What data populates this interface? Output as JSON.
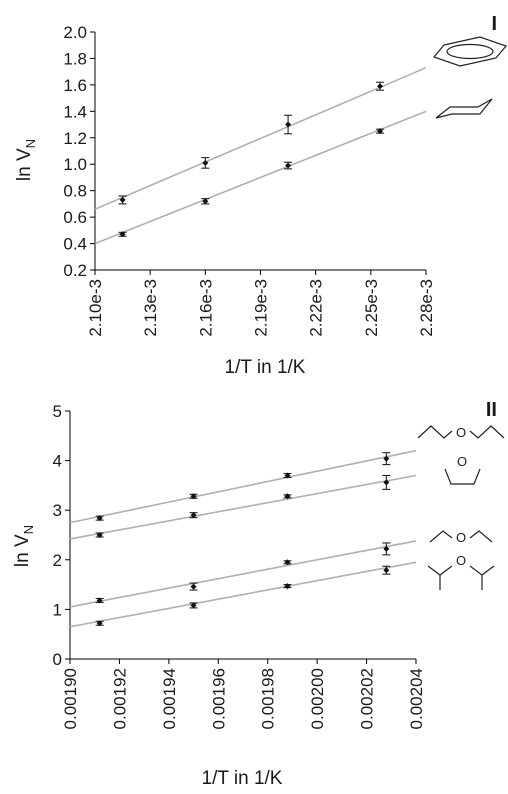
{
  "chart_data": [
    {
      "type": "scatter",
      "panel_label": "I",
      "xlabel": "1/T in 1/K",
      "ylabel_main": "ln V",
      "ylabel_sub": "N",
      "xlim": [
        0.0021,
        0.00228
      ],
      "ylim": [
        0.2,
        2.0
      ],
      "xticks": [
        0.0021,
        0.00213,
        0.00216,
        0.00219,
        0.00222,
        0.00225,
        0.00228
      ],
      "xtick_labels": [
        "2.10e-3",
        "2.13e-3",
        "2.16e-3",
        "2.19e-3",
        "2.22e-3",
        "2.25e-3",
        "2.28e-3"
      ],
      "yticks": [
        0.2,
        0.4,
        0.6,
        0.8,
        1.0,
        1.2,
        1.4,
        1.6,
        1.8,
        2.0
      ],
      "ytick_labels": [
        "0.2",
        "0.4",
        "0.6",
        "0.8",
        "1.0",
        "1.2",
        "1.4",
        "1.6",
        "1.8",
        "2.0"
      ],
      "series": [
        {
          "molecule": "benzene",
          "x": [
            0.002115,
            0.00216,
            0.002205,
            0.002255
          ],
          "y": [
            0.73,
            1.01,
            1.3,
            1.59
          ],
          "err": [
            0.03,
            0.04,
            0.07,
            0.03
          ],
          "fit": [
            [
              0.0021,
              0.66
            ],
            [
              0.00228,
              1.73
            ]
          ]
        },
        {
          "molecule": "cyclohexane",
          "x": [
            0.002115,
            0.00216,
            0.002205,
            0.002255
          ],
          "y": [
            0.47,
            0.72,
            0.99,
            1.25
          ],
          "err": [
            0.015,
            0.02,
            0.025,
            0.015
          ],
          "fit": [
            [
              0.0021,
              0.4
            ],
            [
              0.00228,
              1.4
            ]
          ]
        }
      ]
    },
    {
      "type": "scatter",
      "panel_label": "II",
      "xlabel": "1/T in 1/K",
      "ylabel_main": "ln V",
      "ylabel_sub": "N",
      "xlim": [
        0.0019,
        0.00204
      ],
      "ylim": [
        0,
        5
      ],
      "xticks": [
        0.0019,
        0.00192,
        0.00194,
        0.00196,
        0.00198,
        0.002,
        0.00202,
        0.00204
      ],
      "xtick_labels": [
        "0.00190",
        "0.00192",
        "0.00194",
        "0.00196",
        "0.00198",
        "0.00200",
        "0.00202",
        "0.00204"
      ],
      "yticks": [
        0,
        1,
        2,
        3,
        4,
        5
      ],
      "ytick_labels": [
        "0",
        "1",
        "2",
        "3",
        "4",
        "5"
      ],
      "series": [
        {
          "molecule": "dipropyl ether",
          "x": [
            0.001912,
            0.00195,
            0.001988,
            0.002028
          ],
          "y": [
            2.84,
            3.28,
            3.7,
            4.04
          ],
          "err": [
            0.04,
            0.04,
            0.04,
            0.12
          ],
          "fit": [
            [
              0.0019,
              2.75
            ],
            [
              0.00204,
              4.2
            ]
          ]
        },
        {
          "molecule": "tetrahydrofuran",
          "x": [
            0.001912,
            0.00195,
            0.001988,
            0.002028
          ],
          "y": [
            2.5,
            2.9,
            3.28,
            3.56
          ],
          "err": [
            0.04,
            0.05,
            0.03,
            0.14
          ],
          "fit": [
            [
              0.0019,
              2.42
            ],
            [
              0.00204,
              3.7
            ]
          ]
        },
        {
          "molecule": "diethyl ether",
          "x": [
            0.001912,
            0.00195,
            0.001988,
            0.002028
          ],
          "y": [
            1.18,
            1.46,
            1.95,
            2.22
          ],
          "err": [
            0.04,
            0.07,
            0.03,
            0.12
          ],
          "fit": [
            [
              0.0019,
              1.05
            ],
            [
              0.00204,
              2.38
            ]
          ]
        },
        {
          "molecule": "diisopropyl ether",
          "x": [
            0.001912,
            0.00195,
            0.001988,
            0.002028
          ],
          "y": [
            0.72,
            1.08,
            1.47,
            1.79
          ],
          "err": [
            0.04,
            0.05,
            0.03,
            0.08
          ],
          "fit": [
            [
              0.0019,
              0.65
            ],
            [
              0.00204,
              1.95
            ]
          ]
        }
      ]
    }
  ],
  "structures": {
    "oxygen_label": "O"
  }
}
